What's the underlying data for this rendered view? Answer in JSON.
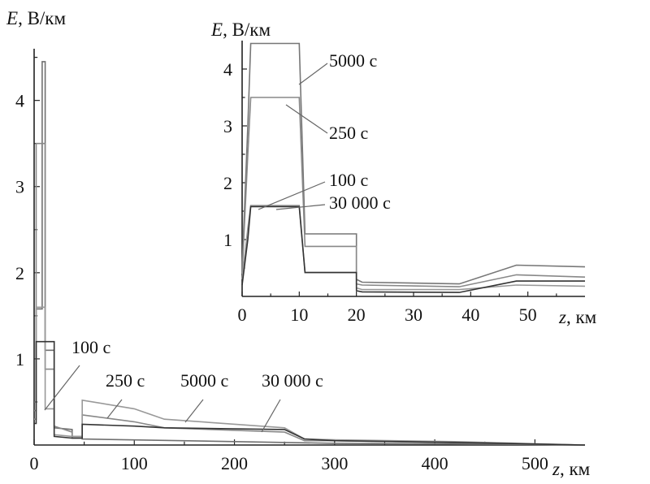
{
  "chart_data": [
    {
      "id": "main",
      "type": "line",
      "xlabel": {
        "var": "z",
        "unit": ", км"
      },
      "ylabel": {
        "var": "E",
        "unit": ", В/км"
      },
      "xlim": [
        0,
        550
      ],
      "ylim": [
        0,
        4.6
      ],
      "xticks": [
        0,
        100,
        200,
        300,
        400,
        500
      ],
      "xtick_labels": [
        "0",
        "100",
        "200",
        "300",
        "400",
        "500"
      ],
      "yticks": [
        1,
        2,
        3,
        4
      ],
      "ytick_labels": [
        "1",
        "2",
        "3",
        "4"
      ],
      "series": [
        {
          "name": "100 с",
          "color": "#707070",
          "x": [
            0,
            2,
            2,
            8,
            8,
            11,
            11,
            20,
            20,
            38,
            38,
            48,
            48,
            300,
            450,
            550
          ],
          "y": [
            0.5,
            0.5,
            1.58,
            1.58,
            4.45,
            4.45,
            1.1,
            1.1,
            0.2,
            0.18,
            0.08,
            0.08,
            0.07,
            0.02,
            0.01,
            0.0
          ]
        },
        {
          "name": "250 с",
          "color": "#888888",
          "x": [
            0,
            2,
            2,
            9,
            9,
            11,
            11,
            20,
            20,
            38,
            38,
            48,
            48,
            100,
            130,
            250,
            270,
            300,
            450,
            550
          ],
          "y": [
            0.4,
            0.4,
            3.5,
            3.5,
            3.5,
            3.5,
            0.88,
            0.88,
            0.22,
            0.15,
            0.1,
            0.1,
            0.35,
            0.27,
            0.2,
            0.15,
            0.05,
            0.05,
            0.02,
            0.0
          ]
        },
        {
          "name": "5000 с",
          "color": "#999999",
          "x": [
            0,
            2,
            2,
            11,
            11,
            20,
            20,
            38,
            38,
            48,
            48,
            100,
            130,
            250,
            270,
            300,
            420,
            550
          ],
          "y": [
            0.3,
            0.3,
            1.6,
            1.6,
            0.42,
            0.42,
            0.12,
            0.1,
            0.1,
            0.1,
            0.52,
            0.42,
            0.3,
            0.2,
            0.07,
            0.06,
            0.04,
            0.0
          ]
        },
        {
          "name": "30 000 с",
          "color": "#333333",
          "x": [
            0,
            2,
            2,
            20,
            20,
            38,
            38,
            48,
            48,
            100,
            130,
            250,
            270,
            300,
            420,
            550
          ],
          "y": [
            0.25,
            0.25,
            1.2,
            1.2,
            0.1,
            0.08,
            0.08,
            0.08,
            0.24,
            0.22,
            0.2,
            0.18,
            0.07,
            0.05,
            0.03,
            0.0
          ]
        }
      ],
      "annotations": [
        {
          "text": "100 с",
          "series": "100 с"
        },
        {
          "text": "250 с",
          "series": "250 с"
        },
        {
          "text": "5000 с",
          "series": "5000 с"
        },
        {
          "text": "30 000 с",
          "series": "30 000 с"
        }
      ]
    },
    {
      "id": "inset",
      "type": "line",
      "xlabel": {
        "var": "z",
        "unit": ", км"
      },
      "ylabel": {
        "var": "E",
        "unit": ", В/км"
      },
      "xlim": [
        0,
        60
      ],
      "ylim": [
        0,
        4.5
      ],
      "xticks": [
        0,
        10,
        20,
        30,
        40,
        50
      ],
      "xtick_labels": [
        "0",
        "10",
        "20",
        "30",
        "40",
        "50"
      ],
      "yticks": [
        1,
        2,
        3,
        4
      ],
      "ytick_labels": [
        "1",
        "2",
        "3",
        "4"
      ],
      "series": [
        {
          "name": "5000 с",
          "color": "#777777",
          "x": [
            0,
            1,
            1.5,
            10,
            11,
            11,
            20,
            20,
            21,
            38,
            48,
            60
          ],
          "y": [
            0.5,
            3.0,
            4.45,
            4.45,
            1.1,
            1.1,
            1.1,
            0.3,
            0.25,
            0.22,
            0.55,
            0.52
          ]
        },
        {
          "name": "250 с",
          "color": "#888888",
          "x": [
            0,
            1,
            1.5,
            10,
            11,
            11,
            20,
            20,
            21,
            38,
            48,
            60
          ],
          "y": [
            0.4,
            2.5,
            3.5,
            3.5,
            0.88,
            0.88,
            0.88,
            0.22,
            0.2,
            0.17,
            0.38,
            0.34
          ]
        },
        {
          "name": "100 с",
          "color": "#999999",
          "x": [
            0,
            1,
            1.5,
            10,
            11,
            11,
            20,
            20,
            21,
            38,
            48,
            60
          ],
          "y": [
            0.3,
            1.2,
            1.6,
            1.6,
            0.42,
            0.42,
            0.42,
            0.15,
            0.12,
            0.12,
            0.2,
            0.18
          ]
        },
        {
          "name": "30 000 с",
          "color": "#333333",
          "x": [
            0,
            1,
            1.5,
            10,
            11,
            11,
            20,
            20,
            21,
            38,
            48,
            60
          ],
          "y": [
            0.2,
            1.0,
            1.58,
            1.58,
            0.42,
            0.42,
            0.42,
            0.1,
            0.08,
            0.07,
            0.27,
            0.27
          ]
        }
      ],
      "annotations": [
        {
          "text": "5000 с",
          "series": "5000 с"
        },
        {
          "text": "250 с",
          "series": "250 с"
        },
        {
          "text": "100 с",
          "series": "100 с"
        },
        {
          "text": "30 000 с",
          "series": "30 000 с"
        }
      ]
    }
  ]
}
